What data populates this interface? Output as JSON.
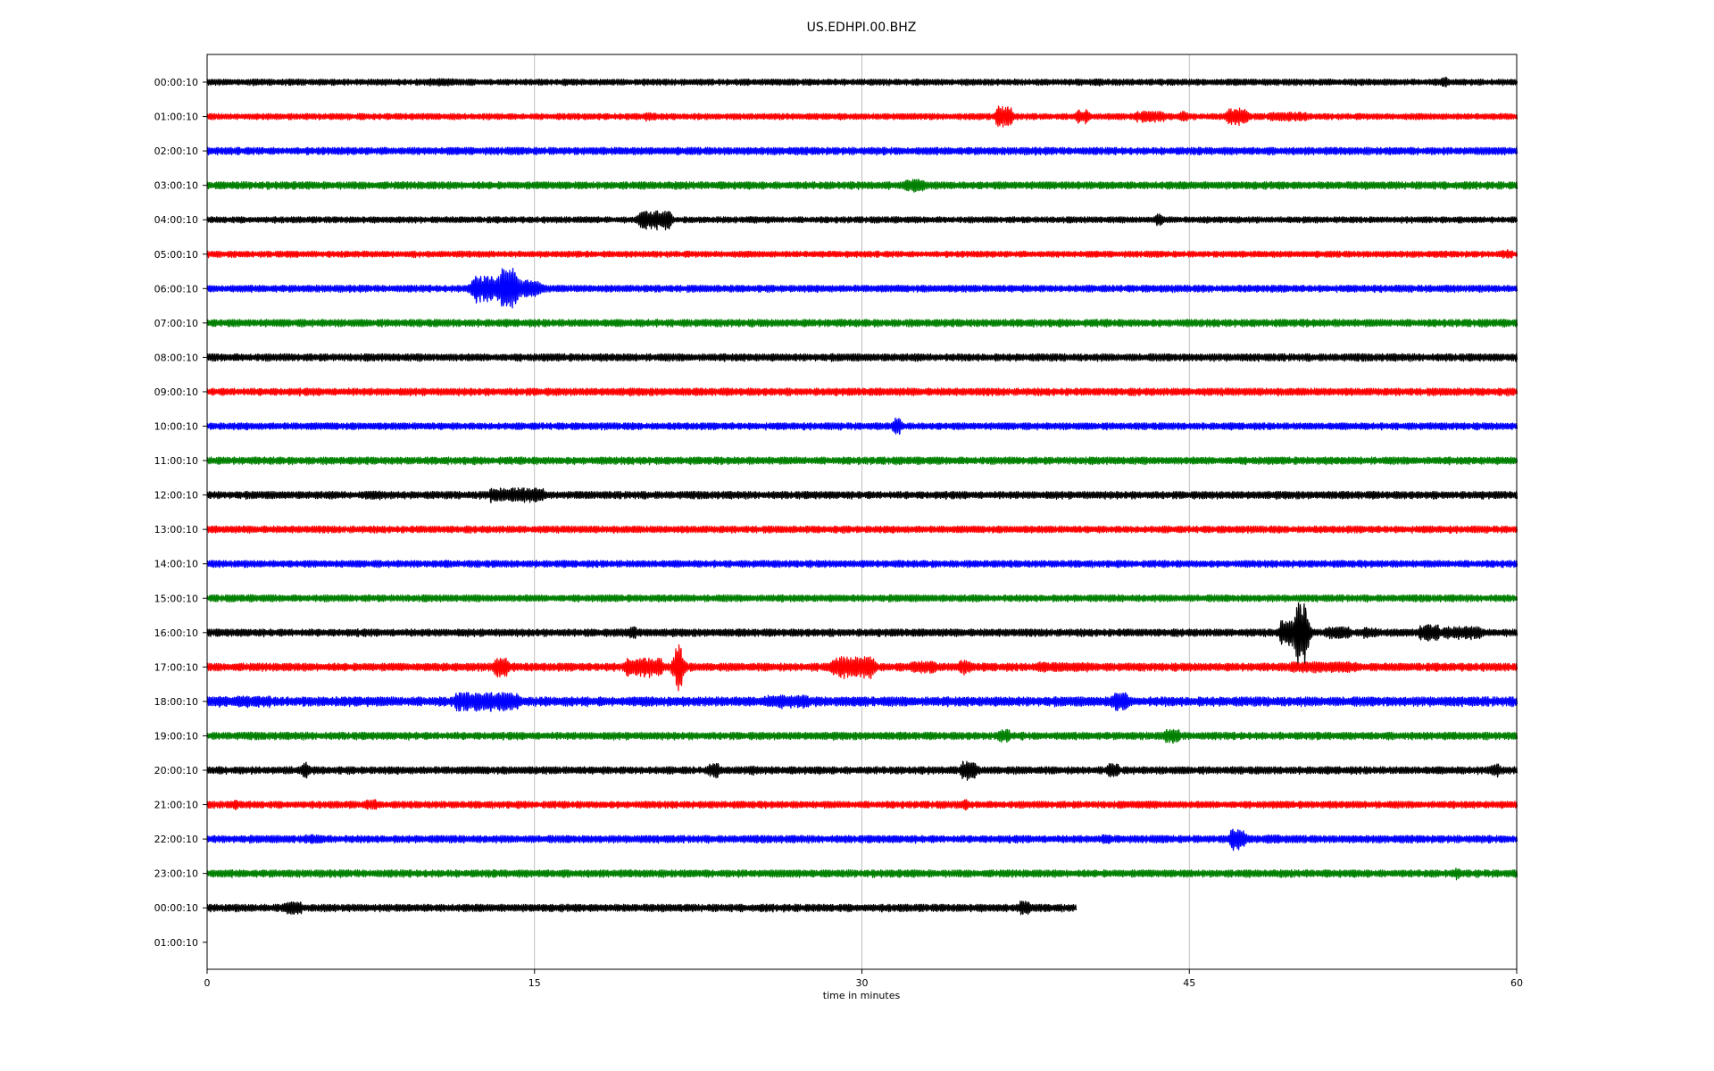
{
  "chart_data": {
    "type": "line",
    "title": "US.EDHPI.00.BHZ",
    "xlabel": "time in minutes",
    "ylabel": "",
    "xlim": [
      0,
      60
    ],
    "x_ticks": [
      0,
      15,
      30,
      45,
      60
    ],
    "x_tick_labels": [
      "0",
      "15",
      "30",
      "45",
      "60"
    ],
    "grid": "vertical",
    "colors": [
      "#000000",
      "#ff0000",
      "#0000ff",
      "#008000"
    ],
    "row_labels": [
      "00:00:10",
      "01:00:10",
      "02:00:10",
      "03:00:10",
      "04:00:10",
      "05:00:10",
      "06:00:10",
      "07:00:10",
      "08:00:10",
      "09:00:10",
      "10:00:10",
      "11:00:10",
      "12:00:10",
      "13:00:10",
      "14:00:10",
      "15:00:10",
      "16:00:10",
      "17:00:10",
      "18:00:10",
      "19:00:10",
      "20:00:10",
      "21:00:10",
      "22:00:10",
      "23:00:10",
      "00:00:10",
      "01:00:10"
    ],
    "traces": [
      {
        "row": 0,
        "color": "#000000",
        "end_minute": 60,
        "noise": 2.5,
        "events": [
          [
            10.8,
            4,
            0.6
          ],
          [
            2.3,
            4,
            0.2
          ],
          [
            56.7,
            6,
            0.1
          ],
          [
            40.8,
            4,
            0.2
          ]
        ]
      },
      {
        "row": 1,
        "color": "#ff0000",
        "end_minute": 60,
        "noise": 2.5,
        "events": [
          [
            36.5,
            12,
            0.3
          ],
          [
            40.1,
            8,
            0.2
          ],
          [
            43.2,
            6,
            0.6
          ],
          [
            44.7,
            6,
            0.2
          ],
          [
            47.2,
            10,
            0.4
          ],
          [
            49.5,
            5,
            0.8
          ],
          [
            20.3,
            5,
            0.2
          ]
        ]
      },
      {
        "row": 2,
        "color": "#0000ff",
        "end_minute": 60,
        "noise": 3.0,
        "events": []
      },
      {
        "row": 3,
        "color": "#008000",
        "end_minute": 60,
        "noise": 3.0,
        "events": [
          [
            32.4,
            7,
            0.4
          ],
          [
            39.8,
            4,
            0.2
          ]
        ]
      },
      {
        "row": 4,
        "color": "#000000",
        "end_minute": 60,
        "noise": 2.5,
        "events": [
          [
            20.5,
            10,
            0.7
          ],
          [
            43.6,
            7,
            0.1
          ],
          [
            25,
            4,
            0.2
          ]
        ]
      },
      {
        "row": 5,
        "color": "#ff0000",
        "end_minute": 60,
        "noise": 2.5,
        "events": [
          [
            59.5,
            5,
            0.2
          ]
        ]
      },
      {
        "row": 6,
        "color": "#0000ff",
        "end_minute": 60,
        "noise": 2.8,
        "events": [
          [
            13.8,
            24,
            0.3
          ],
          [
            12.8,
            14,
            0.6
          ],
          [
            12.3,
            10,
            0.2
          ],
          [
            14.5,
            10,
            0.4
          ],
          [
            15.1,
            8,
            0.2
          ]
        ]
      },
      {
        "row": 7,
        "color": "#008000",
        "end_minute": 60,
        "noise": 3.0,
        "events": []
      },
      {
        "row": 8,
        "color": "#000000",
        "end_minute": 60,
        "noise": 3.0,
        "events": []
      },
      {
        "row": 9,
        "color": "#ff0000",
        "end_minute": 60,
        "noise": 3.0,
        "events": []
      },
      {
        "row": 10,
        "color": "#0000ff",
        "end_minute": 60,
        "noise": 2.8,
        "events": [
          [
            31.6,
            10,
            0.1
          ]
        ]
      },
      {
        "row": 11,
        "color": "#008000",
        "end_minute": 60,
        "noise": 3.0,
        "events": []
      },
      {
        "row": 12,
        "color": "#000000",
        "end_minute": 60,
        "noise": 3.0,
        "events": [
          [
            14.2,
            8,
            1.2
          ],
          [
            7.6,
            5,
            0.3
          ],
          [
            17.2,
            4,
            0.3
          ]
        ]
      },
      {
        "row": 13,
        "color": "#ff0000",
        "end_minute": 60,
        "noise": 2.8,
        "events": []
      },
      {
        "row": 14,
        "color": "#0000ff",
        "end_minute": 60,
        "noise": 2.8,
        "events": [
          [
            10.9,
            4,
            0.2
          ]
        ]
      },
      {
        "row": 15,
        "color": "#008000",
        "end_minute": 60,
        "noise": 2.8,
        "events": []
      },
      {
        "row": 16,
        "color": "#000000",
        "end_minute": 60,
        "noise": 3.0,
        "events": [
          [
            50.1,
            34,
            0.2
          ],
          [
            49.8,
            14,
            0.6
          ],
          [
            51.8,
            7,
            0.5
          ],
          [
            53.3,
            6,
            0.3
          ],
          [
            56,
            9,
            0.4
          ],
          [
            57.5,
            7,
            0.8
          ],
          [
            19.5,
            7,
            0.1
          ]
        ]
      },
      {
        "row": 17,
        "color": "#ff0000",
        "end_minute": 60,
        "noise": 3.2,
        "events": [
          [
            21.6,
            26,
            0.1
          ],
          [
            20,
            10,
            0.8
          ],
          [
            29.6,
            12,
            0.9
          ],
          [
            13.5,
            10,
            0.3
          ],
          [
            32.8,
            7,
            0.5
          ],
          [
            34.7,
            8,
            0.2
          ],
          [
            38.2,
            6,
            0.3
          ],
          [
            39.5,
            5,
            1.0
          ],
          [
            51.2,
            6,
            1.5
          ],
          [
            10.4,
            4,
            0.6
          ]
        ]
      },
      {
        "row": 18,
        "color": "#0000ff",
        "end_minute": 60,
        "noise": 3.8,
        "events": [
          [
            12.8,
            10,
            1.4
          ],
          [
            26.5,
            7,
            1.0
          ],
          [
            1.7,
            6,
            1.2
          ],
          [
            41.8,
            10,
            0.3
          ],
          [
            6.8,
            5,
            0.2
          ],
          [
            29.8,
            5,
            0.3
          ]
        ]
      },
      {
        "row": 19,
        "color": "#008000",
        "end_minute": 60,
        "noise": 3.0,
        "events": [
          [
            36.5,
            8,
            0.2
          ],
          [
            44.2,
            7,
            0.3
          ]
        ]
      },
      {
        "row": 20,
        "color": "#000000",
        "end_minute": 60,
        "noise": 3.0,
        "events": [
          [
            4.5,
            9,
            0.1
          ],
          [
            23.2,
            8,
            0.2
          ],
          [
            34.9,
            10,
            0.3
          ],
          [
            41.5,
            8,
            0.2
          ],
          [
            59,
            7,
            0.2
          ],
          [
            25,
            5,
            0.1
          ]
        ]
      },
      {
        "row": 21,
        "color": "#ff0000",
        "end_minute": 60,
        "noise": 2.8,
        "events": [
          [
            7.5,
            6,
            0.2
          ],
          [
            1.3,
            5,
            0.2
          ],
          [
            34.7,
            6,
            0.1
          ],
          [
            43,
            4,
            0.5
          ]
        ]
      },
      {
        "row": 22,
        "color": "#0000ff",
        "end_minute": 60,
        "noise": 3.0,
        "events": [
          [
            47.2,
            11,
            0.3
          ],
          [
            4.8,
            5,
            0.3
          ],
          [
            41.2,
            5,
            0.2
          ],
          [
            48.8,
            5,
            0.3
          ]
        ]
      },
      {
        "row": 23,
        "color": "#008000",
        "end_minute": 60,
        "noise": 3.0,
        "events": [
          [
            57.3,
            6,
            0.1
          ]
        ]
      },
      {
        "row": 24,
        "color": "#000000",
        "end_minute": 39.8,
        "noise": 3.0,
        "events": [
          [
            3.9,
            7,
            0.4
          ],
          [
            37.4,
            8,
            0.2
          ]
        ]
      }
    ]
  }
}
